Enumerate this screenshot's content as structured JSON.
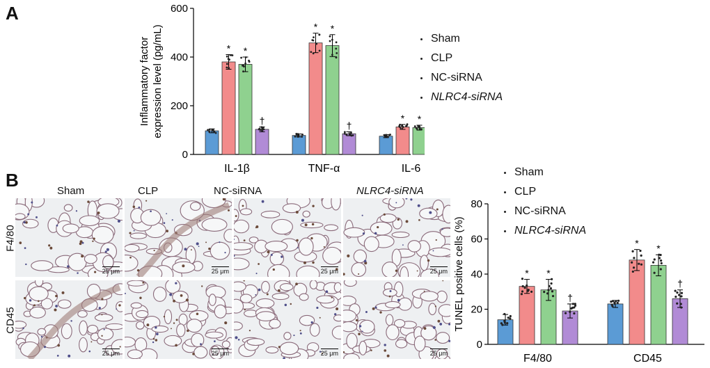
{
  "panel_a": {
    "letter": "A",
    "legend": [
      {
        "label": "Sham",
        "italic": false
      },
      {
        "label": "CLP",
        "italic": false
      },
      {
        "label": "NC-siRNA",
        "italic": false
      },
      {
        "label": "NLRC4-siRNA",
        "italic": true
      }
    ]
  },
  "panel_b": {
    "letter": "B",
    "column_labels": [
      {
        "label": "Sham",
        "italic": false
      },
      {
        "label": "CLP",
        "italic": false
      },
      {
        "label": "NC-siRNA",
        "italic": false
      },
      {
        "label": "NLRC4-siRNA",
        "italic": true
      }
    ],
    "row_labels": [
      "F4/80",
      "CD45"
    ],
    "scale_bar_label": "25 μm",
    "legend": [
      {
        "label": "Sham",
        "italic": false
      },
      {
        "label": "CLP",
        "italic": false
      },
      {
        "label": "NC-siRNA",
        "italic": false
      },
      {
        "label": "NLRC4-siRNA",
        "italic": true
      }
    ]
  },
  "colors": {
    "sham": "#5b9bd5",
    "clp": "#f28b8b",
    "nc_sirna": "#8fd18f",
    "nlrc4_sirna": "#b18bd6",
    "tissue_bg": "#eef0f2",
    "tissue_line": "#8a6a7a"
  },
  "chart_data": [
    {
      "type": "bar",
      "ylabel": "Inflammatory factor\nexpression level (pg/mL)",
      "ylabel_lines": [
        "Inflammatory factor",
        "expression level (pg/mL)"
      ],
      "ylim": [
        0,
        600
      ],
      "yticks": [
        0,
        200,
        400,
        600
      ],
      "categories": [
        "IL-1β",
        "TNF-α",
        "IL-6"
      ],
      "series": [
        {
          "name": "Sham",
          "values": [
            97,
            78,
            75
          ],
          "errors": [
            8,
            6,
            6
          ],
          "marks": [
            "",
            "",
            ""
          ]
        },
        {
          "name": "CLP",
          "values": [
            380,
            458,
            113
          ],
          "errors": [
            30,
            40,
            10
          ],
          "marks": [
            "*",
            "*",
            "*"
          ]
        },
        {
          "name": "NC-siRNA",
          "values": [
            370,
            447,
            110
          ],
          "errors": [
            30,
            45,
            10
          ],
          "marks": [
            "*",
            "*",
            "*"
          ]
        },
        {
          "name": "NLRC4-siRNA",
          "values": [
            103,
            85,
            77
          ],
          "errors": [
            10,
            8,
            6
          ],
          "marks": [
            "†",
            "†",
            "†"
          ]
        }
      ]
    },
    {
      "type": "bar",
      "ylabel": "TUNEL positive cells (%)",
      "ylim": [
        0,
        80
      ],
      "yticks": [
        0,
        20,
        40,
        60,
        80
      ],
      "categories": [
        "F4/80",
        "CD45"
      ],
      "series": [
        {
          "name": "Sham",
          "values": [
            14,
            23
          ],
          "errors": [
            3,
            2
          ],
          "marks": [
            "",
            ""
          ]
        },
        {
          "name": "CLP",
          "values": [
            33,
            48
          ],
          "errors": [
            4,
            6
          ],
          "marks": [
            "*",
            "*"
          ]
        },
        {
          "name": "NC-siRNA",
          "values": [
            31,
            45
          ],
          "errors": [
            6,
            6
          ],
          "marks": [
            "*",
            "*"
          ]
        },
        {
          "name": "NLRC4-siRNA",
          "values": [
            19,
            26
          ],
          "errors": [
            4,
            5
          ],
          "marks": [
            "†",
            "†"
          ]
        }
      ]
    }
  ]
}
